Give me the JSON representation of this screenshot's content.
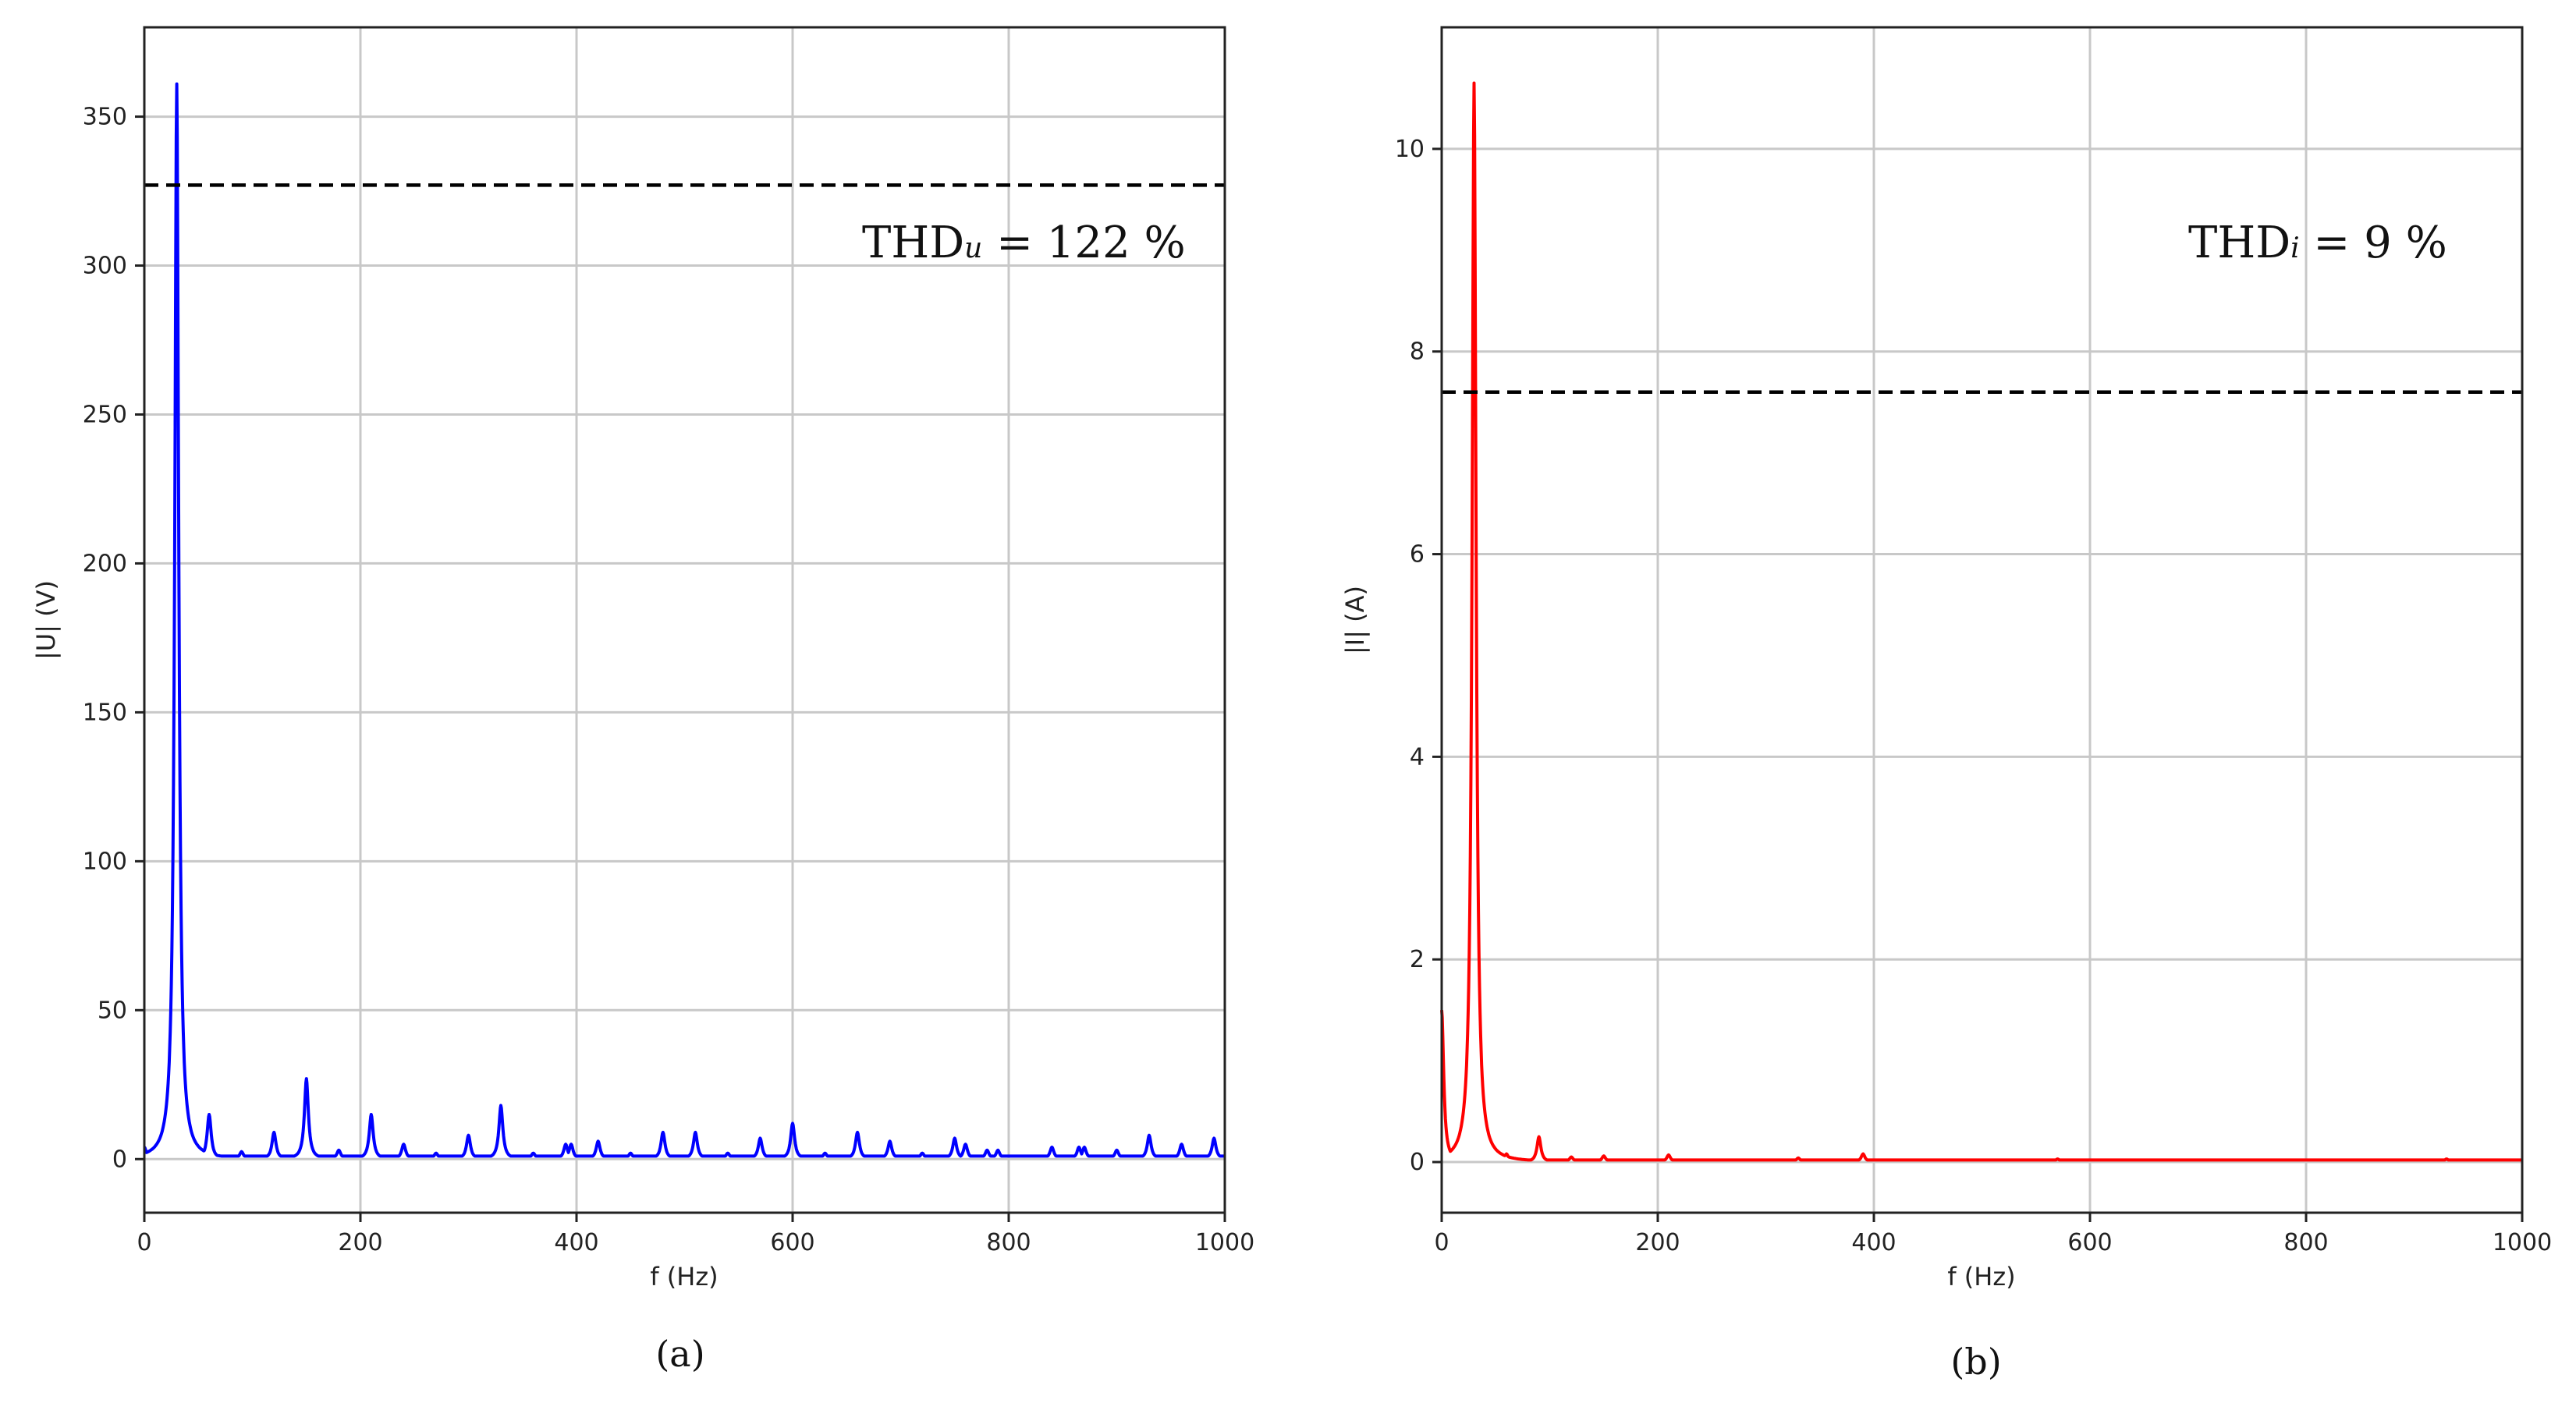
{
  "chart_data": [
    {
      "type": "line",
      "id": "a",
      "panel_label": "(a)",
      "xlabel": "f (Hz)",
      "ylabel": "|U| (V)",
      "xlim": [
        0,
        1000
      ],
      "ylim": [
        -18,
        380
      ],
      "xticks": [
        0,
        200,
        400,
        600,
        800,
        1000
      ],
      "yticks": [
        0,
        50,
        100,
        150,
        200,
        250,
        300,
        350
      ],
      "grid": true,
      "line_color": "#0000ff",
      "reference_line": {
        "y": 327,
        "color": "#000000",
        "style": "dashed"
      },
      "annotation": {
        "main": "THD",
        "sub": "u",
        "rest": " = 122 %"
      },
      "baseline": 1,
      "peaks": [
        {
          "x": 0,
          "y": 4
        },
        {
          "x": 30,
          "y": 361
        },
        {
          "x": 60,
          "y": 15
        },
        {
          "x": 90,
          "y": 2.5
        },
        {
          "x": 120,
          "y": 9
        },
        {
          "x": 150,
          "y": 27
        },
        {
          "x": 180,
          "y": 3
        },
        {
          "x": 210,
          "y": 15
        },
        {
          "x": 240,
          "y": 5
        },
        {
          "x": 270,
          "y": 2
        },
        {
          "x": 300,
          "y": 8
        },
        {
          "x": 330,
          "y": 18
        },
        {
          "x": 360,
          "y": 2
        },
        {
          "x": 390,
          "y": 5
        },
        {
          "x": 395,
          "y": 5
        },
        {
          "x": 420,
          "y": 6
        },
        {
          "x": 450,
          "y": 2
        },
        {
          "x": 480,
          "y": 9
        },
        {
          "x": 510,
          "y": 9
        },
        {
          "x": 540,
          "y": 2
        },
        {
          "x": 570,
          "y": 7
        },
        {
          "x": 600,
          "y": 12
        },
        {
          "x": 630,
          "y": 2
        },
        {
          "x": 660,
          "y": 9
        },
        {
          "x": 690,
          "y": 6
        },
        {
          "x": 720,
          "y": 2
        },
        {
          "x": 750,
          "y": 7
        },
        {
          "x": 760,
          "y": 5
        },
        {
          "x": 780,
          "y": 3
        },
        {
          "x": 790,
          "y": 3
        },
        {
          "x": 840,
          "y": 4
        },
        {
          "x": 865,
          "y": 4
        },
        {
          "x": 870,
          "y": 4
        },
        {
          "x": 900,
          "y": 3
        },
        {
          "x": 930,
          "y": 8
        },
        {
          "x": 960,
          "y": 5
        },
        {
          "x": 990,
          "y": 7
        }
      ]
    },
    {
      "type": "line",
      "id": "b",
      "panel_label": "(b)",
      "xlabel": "f (Hz)",
      "ylabel": "|I| (A)",
      "xlim": [
        0,
        1000
      ],
      "ylim": [
        -0.5,
        11.2
      ],
      "xticks": [
        0,
        200,
        400,
        600,
        800,
        1000
      ],
      "yticks": [
        0,
        2,
        4,
        6,
        8,
        10
      ],
      "grid": true,
      "line_color": "#ff0000",
      "reference_line": {
        "y": 7.6,
        "color": "#000000",
        "style": "dashed"
      },
      "annotation": {
        "main": "THD",
        "sub": "i",
        "rest": " = 9 %"
      },
      "baseline": 0.02,
      "peaks": [
        {
          "x": 0,
          "y": 1.5
        },
        {
          "x": 30,
          "y": 10.65
        },
        {
          "x": 60,
          "y": 0.08
        },
        {
          "x": 90,
          "y": 0.25
        },
        {
          "x": 120,
          "y": 0.05
        },
        {
          "x": 150,
          "y": 0.06
        },
        {
          "x": 210,
          "y": 0.07
        },
        {
          "x": 330,
          "y": 0.04
        },
        {
          "x": 390,
          "y": 0.08
        },
        {
          "x": 570,
          "y": 0.03
        },
        {
          "x": 930,
          "y": 0.03
        }
      ]
    }
  ]
}
